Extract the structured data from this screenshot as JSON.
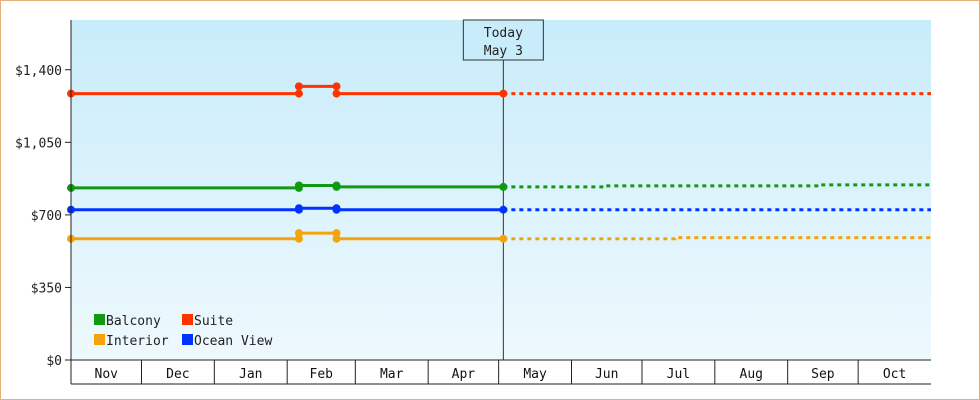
{
  "chart_data": {
    "type": "line",
    "title": "",
    "xlabel": "",
    "ylabel": "",
    "ylim": [
      0,
      1640
    ],
    "y_ticks": [
      {
        "value": 0,
        "label": "$0"
      },
      {
        "value": 350,
        "label": "$350"
      },
      {
        "value": 700,
        "label": "$700"
      },
      {
        "value": 1050,
        "label": "$1,050"
      },
      {
        "value": 1400,
        "label": "$1,400"
      }
    ],
    "x_range": [
      "2023-11-01",
      "2024-11-01"
    ],
    "months": [
      {
        "label": "Nov",
        "start": "2023-11-01"
      },
      {
        "label": "Dec",
        "start": "2023-12-01"
      },
      {
        "label": "Jan",
        "start": "2024-01-01"
      },
      {
        "label": "Feb",
        "start": "2024-02-01"
      },
      {
        "label": "Mar",
        "start": "2024-03-01"
      },
      {
        "label": "Apr",
        "start": "2024-04-01"
      },
      {
        "label": "May",
        "start": "2024-05-01"
      },
      {
        "label": "Jun",
        "start": "2024-06-01"
      },
      {
        "label": "Jul",
        "start": "2024-07-01"
      },
      {
        "label": "Aug",
        "start": "2024-08-01"
      },
      {
        "label": "Sep",
        "start": "2024-09-01"
      },
      {
        "label": "Oct",
        "start": "2024-10-01"
      }
    ],
    "today": {
      "date": "2024-05-03",
      "line1": "Today",
      "line2": "May 3"
    },
    "legend": {
      "placement": "bottom-left",
      "columns": 2
    },
    "grid": false,
    "series": [
      {
        "name": "Suite",
        "color": "#ff3300",
        "points": [
          {
            "x": "2023-11-01",
            "y": 1285
          },
          {
            "x": "2024-02-06",
            "y": 1285
          },
          {
            "x": "2024-02-06",
            "y": 1320
          },
          {
            "x": "2024-02-22",
            "y": 1320
          },
          {
            "x": "2024-02-22",
            "y": 1285
          },
          {
            "x": "2024-05-03",
            "y": 1285
          }
        ],
        "markers": [
          {
            "x": "2023-11-01",
            "y": 1285
          },
          {
            "x": "2024-02-06",
            "y": 1285
          },
          {
            "x": "2024-02-06",
            "y": 1320
          },
          {
            "x": "2024-02-22",
            "y": 1320
          },
          {
            "x": "2024-02-22",
            "y": 1285
          },
          {
            "x": "2024-05-03",
            "y": 1285
          }
        ],
        "forecast": [
          {
            "x": "2024-05-03",
            "y": 1285
          },
          {
            "x": "2024-11-01",
            "y": 1285
          }
        ]
      },
      {
        "name": "Balcony",
        "color": "#119911",
        "points": [
          {
            "x": "2023-11-01",
            "y": 830
          },
          {
            "x": "2024-02-06",
            "y": 830
          },
          {
            "x": "2024-02-06",
            "y": 842
          },
          {
            "x": "2024-02-22",
            "y": 842
          },
          {
            "x": "2024-02-22",
            "y": 835
          },
          {
            "x": "2024-05-03",
            "y": 835
          }
        ],
        "markers": [
          {
            "x": "2023-11-01",
            "y": 830
          },
          {
            "x": "2024-02-06",
            "y": 830
          },
          {
            "x": "2024-02-06",
            "y": 842
          },
          {
            "x": "2024-02-22",
            "y": 842
          },
          {
            "x": "2024-02-22",
            "y": 835
          },
          {
            "x": "2024-05-03",
            "y": 835
          }
        ],
        "forecast": [
          {
            "x": "2024-05-03",
            "y": 835
          },
          {
            "x": "2024-06-15",
            "y": 835
          },
          {
            "x": "2024-06-15",
            "y": 840
          },
          {
            "x": "2024-09-15",
            "y": 840
          },
          {
            "x": "2024-09-15",
            "y": 845
          },
          {
            "x": "2024-11-01",
            "y": 845
          }
        ]
      },
      {
        "name": "Ocean View",
        "color": "#0033ff",
        "points": [
          {
            "x": "2023-11-01",
            "y": 725
          },
          {
            "x": "2024-02-06",
            "y": 725
          },
          {
            "x": "2024-02-06",
            "y": 732
          },
          {
            "x": "2024-02-22",
            "y": 732
          },
          {
            "x": "2024-02-22",
            "y": 725
          },
          {
            "x": "2024-05-03",
            "y": 725
          }
        ],
        "markers": [
          {
            "x": "2023-11-01",
            "y": 725
          },
          {
            "x": "2024-02-06",
            "y": 725
          },
          {
            "x": "2024-02-06",
            "y": 732
          },
          {
            "x": "2024-02-22",
            "y": 732
          },
          {
            "x": "2024-02-22",
            "y": 725
          },
          {
            "x": "2024-05-03",
            "y": 725
          }
        ],
        "forecast": [
          {
            "x": "2024-05-03",
            "y": 725
          },
          {
            "x": "2024-11-01",
            "y": 725
          }
        ]
      },
      {
        "name": "Interior",
        "color": "#f5a30a",
        "points": [
          {
            "x": "2023-11-01",
            "y": 585
          },
          {
            "x": "2024-02-06",
            "y": 585
          },
          {
            "x": "2024-02-06",
            "y": 612
          },
          {
            "x": "2024-02-22",
            "y": 612
          },
          {
            "x": "2024-02-22",
            "y": 585
          },
          {
            "x": "2024-05-03",
            "y": 585
          }
        ],
        "markers": [
          {
            "x": "2023-11-01",
            "y": 585
          },
          {
            "x": "2024-02-06",
            "y": 585
          },
          {
            "x": "2024-02-06",
            "y": 612
          },
          {
            "x": "2024-02-22",
            "y": 612
          },
          {
            "x": "2024-02-22",
            "y": 585
          },
          {
            "x": "2024-05-03",
            "y": 585
          }
        ],
        "forecast": [
          {
            "x": "2024-05-03",
            "y": 585
          },
          {
            "x": "2024-07-15",
            "y": 585
          },
          {
            "x": "2024-07-15",
            "y": 590
          },
          {
            "x": "2024-11-01",
            "y": 590
          }
        ]
      }
    ],
    "legend_order": [
      "Balcony",
      "Suite",
      "Interior",
      "Ocean View"
    ]
  }
}
